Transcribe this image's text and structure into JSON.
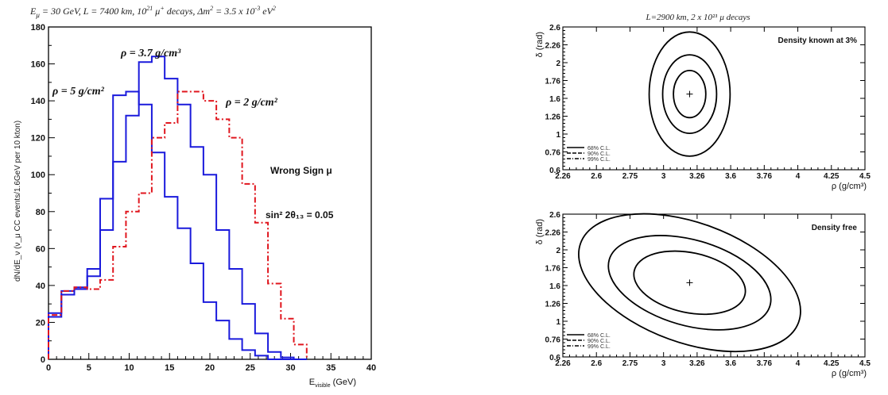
{
  "chart_data": [
    {
      "type": "histogram",
      "title": "E_μ = 30 GeV, L = 7400 km, 10²¹ μ⁺ decays,  Δm² = 3.5 x 10⁻³ eV²",
      "title_parts": [
        "E",
        "μ",
        " = 30 GeV, L = 7400 km, 10",
        "21",
        " μ",
        "+",
        " decays,  Δm",
        "2",
        " = 3.5 x 10",
        "-3",
        " eV",
        "2"
      ],
      "xlabel": "E_visible (GeV)",
      "xlabel_main": "E",
      "xlabel_sub": "visible",
      "xlabel_unit": " (GeV)",
      "ylabel": "dN/dE_ν (ν_μ CC events/1.6GeV per 10 kton)",
      "xlim": [
        0,
        40
      ],
      "ylim": [
        0,
        180
      ],
      "xticks": [
        0,
        5,
        10,
        15,
        20,
        25,
        30,
        35,
        40
      ],
      "yticks": [
        0,
        20,
        40,
        60,
        80,
        100,
        120,
        140,
        160,
        180
      ],
      "bin_edges": [
        0,
        1.6,
        3.2,
        4.8,
        6.4,
        8.0,
        9.6,
        11.2,
        12.8,
        14.4,
        16.0,
        17.6,
        19.2,
        20.8,
        22.4,
        24.0,
        25.6,
        27.2,
        28.8,
        30.4,
        32.0
      ],
      "series": [
        {
          "label_key": "rho5",
          "color": "#1a1adc",
          "style": "solid",
          "values": [
            23,
            37,
            38,
            49,
            87,
            143,
            145,
            138,
            112,
            88,
            71,
            52,
            31,
            21,
            11,
            5,
            2,
            0,
            0,
            0
          ]
        },
        {
          "label_key": "rho37",
          "color": "#1a1adc",
          "style": "solid",
          "values": [
            25,
            35,
            39,
            45,
            70,
            107,
            132,
            161,
            164,
            152,
            138,
            115,
            100,
            70,
            49,
            30,
            14,
            4,
            1,
            0
          ]
        },
        {
          "label_key": "rho2",
          "color": "#e0161e",
          "style": "dashdot",
          "values": [
            24,
            37,
            39,
            38,
            43,
            61,
            80,
            90,
            120,
            128,
            145,
            145,
            140,
            130,
            120,
            95,
            74,
            41,
            22,
            8
          ]
        }
      ],
      "annotations": {
        "rho37": "ρ = 3.7 g/cm³",
        "rho5": "ρ = 5 g/cm²",
        "rho2": "ρ = 2 g/cm²",
        "wrong_sign": "Wrong Sign μ",
        "sin2": "sin² 2θ₁₃ = 0.05"
      }
    },
    {
      "type": "contour",
      "title": "L=2900 km, 2 x 10²¹ μ decays",
      "label": "Density known at 3%",
      "xlabel": "ρ (g/cm³)",
      "ylabel": "δ (rad)",
      "xlim": [
        2.26,
        4.5
      ],
      "ylim": [
        0.6,
        2.6
      ],
      "xtick_labels": [
        "2.26",
        "2.6",
        "2.75",
        "3",
        "3.26",
        "3.6",
        "3.76",
        "4",
        "4.25",
        "4.5"
      ],
      "ytick_labels": [
        "0.6",
        "0.76",
        "1",
        "1.26",
        "1.6",
        "1.76",
        "2",
        "2.26",
        "2.6"
      ],
      "best_fit": {
        "rho": 3.2,
        "delta": 1.66
      },
      "contours": [
        {
          "cl": "68% C.L.",
          "rho_halfwidth": 0.12,
          "delta_halfwidth": 0.33
        },
        {
          "cl": "90% C.L.",
          "rho_halfwidth": 0.2,
          "delta_halfwidth": 0.55
        },
        {
          "cl": "99% C.L.",
          "rho_halfwidth": 0.3,
          "delta_halfwidth": 0.87
        }
      ],
      "legend": [
        "68% C.L.",
        "90% C.L.",
        "99% C.L."
      ]
    },
    {
      "type": "contour",
      "label": "Density free",
      "xlabel": "ρ (g/cm³)",
      "ylabel": "δ (rad)",
      "xlim": [
        2.26,
        4.5
      ],
      "ylim": [
        0.6,
        2.6
      ],
      "xtick_labels": [
        "2.26",
        "2.6",
        "2.75",
        "3",
        "3.26",
        "3.6",
        "3.76",
        "4",
        "4.25",
        "4.5"
      ],
      "ytick_labels": [
        "0.6",
        "0.76",
        "1",
        "1.26",
        "1.6",
        "1.76",
        "2",
        "2.26",
        "2.6"
      ],
      "best_fit": {
        "rho": 3.2,
        "delta": 1.64
      },
      "contours": [
        {
          "cl": "68% C.L.",
          "rho_halfwidth": 0.42,
          "delta_halfwidth": 0.42,
          "tilt_deg": -12
        },
        {
          "cl": "90% C.L.",
          "rho_halfwidth": 0.62,
          "delta_halfwidth": 0.6,
          "tilt_deg": -16
        },
        {
          "cl": "99% C.L.",
          "rho_halfwidth": 0.86,
          "delta_halfwidth": 0.84,
          "tilt_deg": -20
        }
      ],
      "legend": [
        "68% C.L.",
        "90% C.L.",
        "99% C.L."
      ]
    }
  ]
}
